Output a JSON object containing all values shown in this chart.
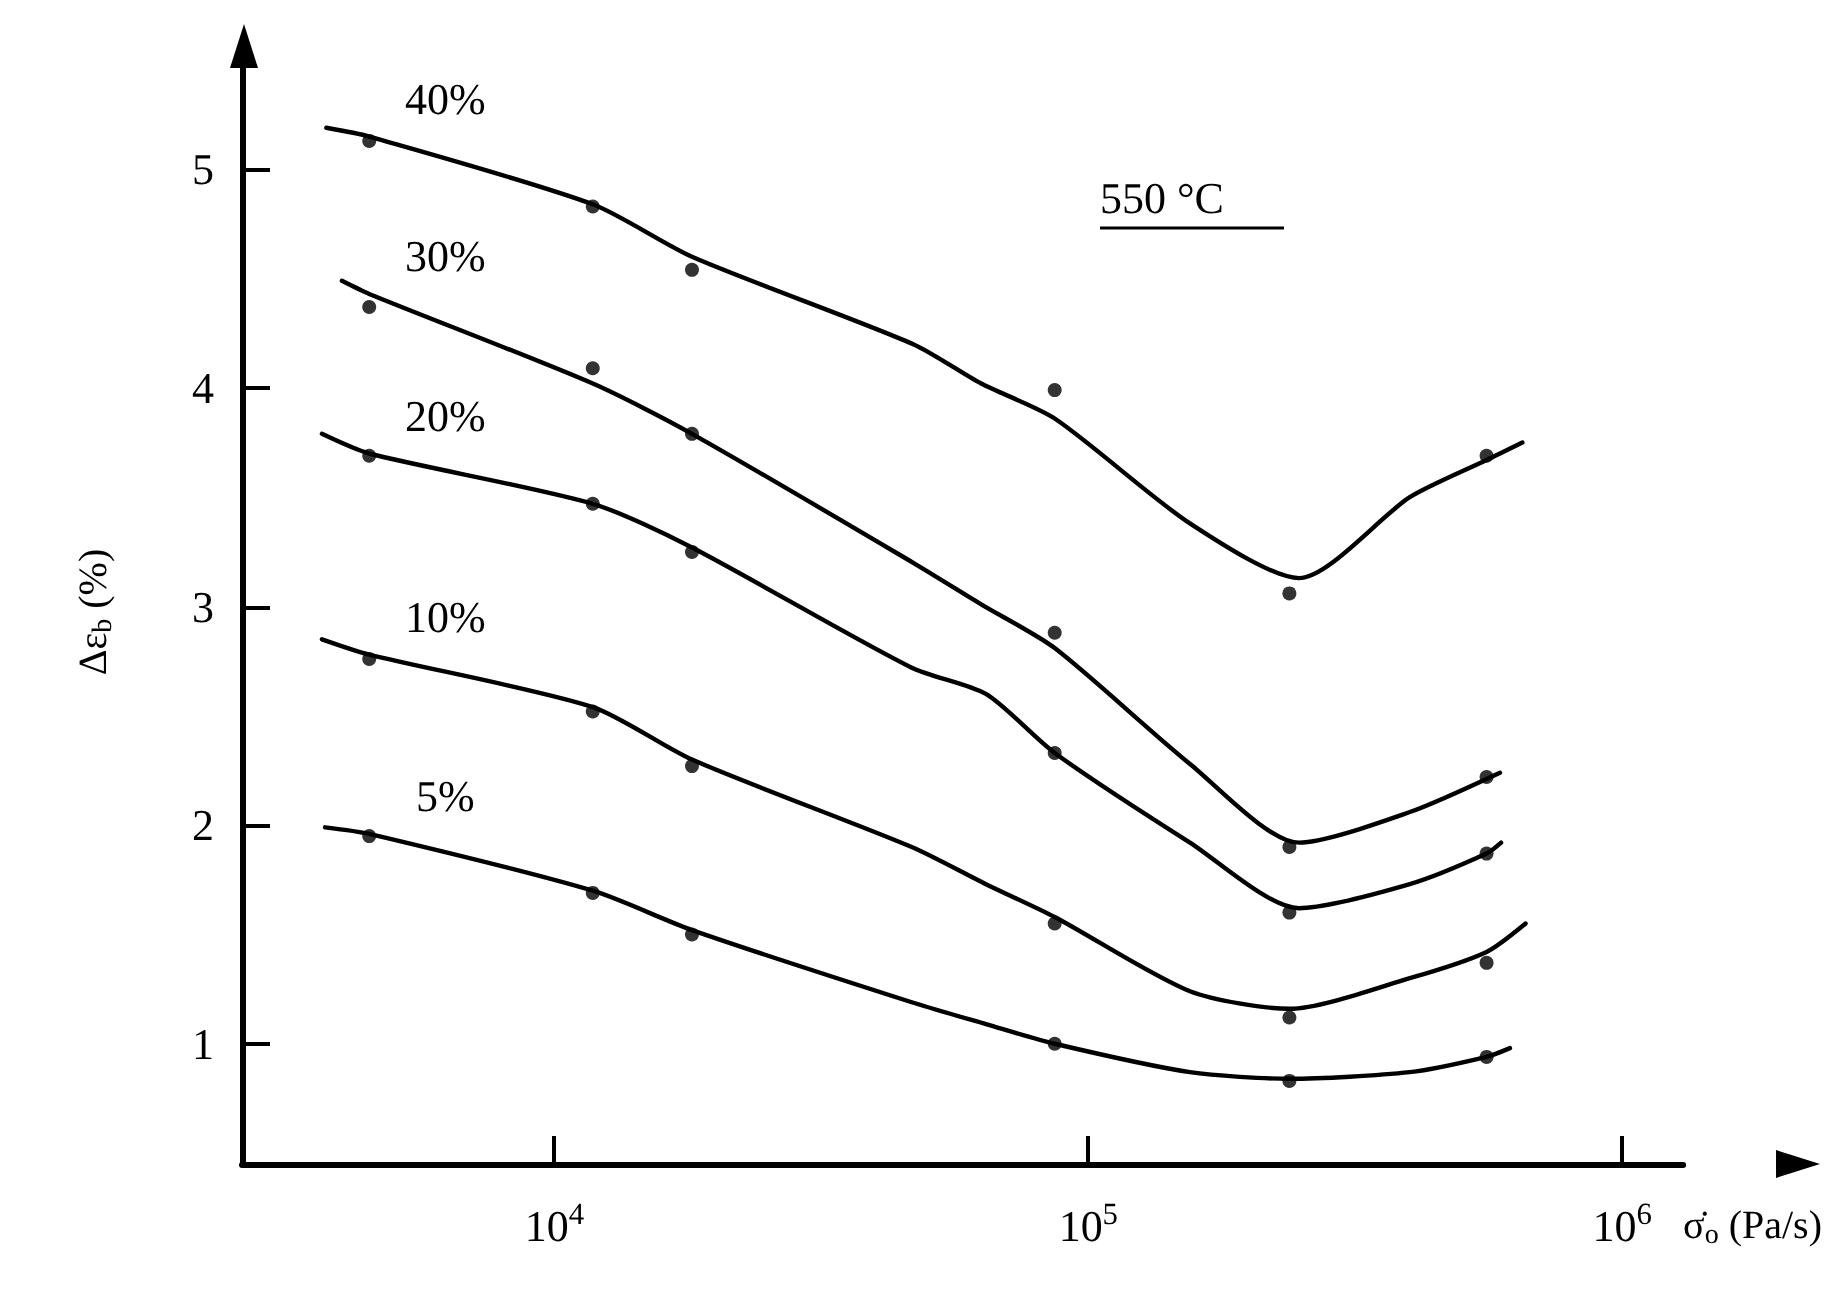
{
  "chart_data": {
    "type": "scatter",
    "xlabel": "σ̇$_{o}$ (Pa/s)",
    "ylabel": "Δε$_{b}$ (%)",
    "annotations": [
      "550 °C"
    ],
    "log": "x",
    "xlim": [
      2600,
      1300000
    ],
    "xticks": [
      {
        "value": 10000,
        "label": "10$^{4}$"
      },
      {
        "value": 100000,
        "label": "10$^{5}$"
      },
      {
        "value": 1000000,
        "label": "10$^{6}$"
      }
    ],
    "ylim": [
      0.45,
      5.5
    ],
    "yticks": [
      1,
      2,
      3,
      4,
      5
    ],
    "grid": false,
    "legend": false,
    "marker": "circle",
    "series": [
      {
        "color": "#000000",
        "x": [
          4500,
          11800,
          18100,
          86500,
          238000,
          557000
        ],
        "values": [
          5.13,
          4.83,
          4.54,
          3.99,
          3.06,
          3.69
        ]
      },
      {
        "color": "#000000",
        "x": [
          4500,
          11800,
          18100,
          86500,
          238000,
          557000
        ],
        "values": [
          4.37,
          4.09,
          3.79,
          2.88,
          1.9,
          2.22
        ]
      },
      {
        "color": "#000000",
        "x": [
          4500,
          11800,
          18100,
          86500,
          238000,
          557000
        ],
        "values": [
          3.69,
          3.47,
          3.25,
          2.33,
          1.6,
          1.87
        ]
      },
      {
        "color": "#000000",
        "x": [
          4500,
          11800,
          18100,
          86500,
          238000,
          557000
        ],
        "values": [
          2.76,
          2.52,
          2.27,
          1.55,
          1.12,
          1.37
        ]
      },
      {
        "color": "#000000",
        "x": [
          4500,
          11800,
          18100,
          86500,
          238000,
          557000
        ],
        "values": [
          1.95,
          1.69,
          1.5,
          1.0,
          0.83,
          0.94
        ]
      },
      {
        "type": "line",
        "name": "40%",
        "marker": "none",
        "color": "#000000",
        "x": [
          3740,
          4500,
          11800,
          18100,
          47000,
          63000,
          86500,
          155000,
          248000,
          400000,
          557000,
          650000
        ],
        "values": [
          5.19,
          5.15,
          4.84,
          4.6,
          4.2,
          4.02,
          3.86,
          3.38,
          3.13,
          3.5,
          3.67,
          3.75
        ]
      },
      {
        "type": "line",
        "name": "30%",
        "marker": "none",
        "color": "#000000",
        "x": [
          4000,
          4500,
          11800,
          18100,
          47000,
          63000,
          86500,
          155000,
          248000,
          400000,
          590000
        ],
        "values": [
          4.49,
          4.43,
          4.02,
          3.79,
          3.2,
          3.01,
          2.81,
          2.28,
          1.92,
          2.06,
          2.24
        ]
      },
      {
        "type": "line",
        "name": "20%",
        "marker": "none",
        "color": "#000000",
        "x": [
          3670,
          4500,
          11800,
          18100,
          46700,
          64300,
          86500,
          155000,
          248000,
          400000,
          557000,
          593000
        ],
        "values": [
          3.79,
          3.7,
          3.47,
          3.27,
          2.72,
          2.6,
          2.33,
          1.92,
          1.62,
          1.73,
          1.87,
          1.92
        ]
      },
      {
        "type": "line",
        "name": "10%",
        "marker": "none",
        "color": "#000000",
        "x": [
          3670,
          4500,
          11800,
          18100,
          46700,
          64300,
          86500,
          155000,
          238000,
          400000,
          557000,
          659000
        ],
        "values": [
          2.85,
          2.78,
          2.54,
          2.3,
          1.9,
          1.73,
          1.58,
          1.24,
          1.16,
          1.3,
          1.42,
          1.55
        ]
      },
      {
        "type": "line",
        "name": "5%",
        "marker": "none",
        "color": "#000000",
        "x": [
          3720,
          4500,
          11800,
          18100,
          46700,
          64300,
          86500,
          155000,
          238000,
          400000,
          557000,
          616000
        ],
        "values": [
          1.99,
          1.96,
          1.7,
          1.52,
          1.19,
          1.09,
          1.0,
          0.87,
          0.84,
          0.87,
          0.94,
          0.98
        ]
      }
    ]
  }
}
